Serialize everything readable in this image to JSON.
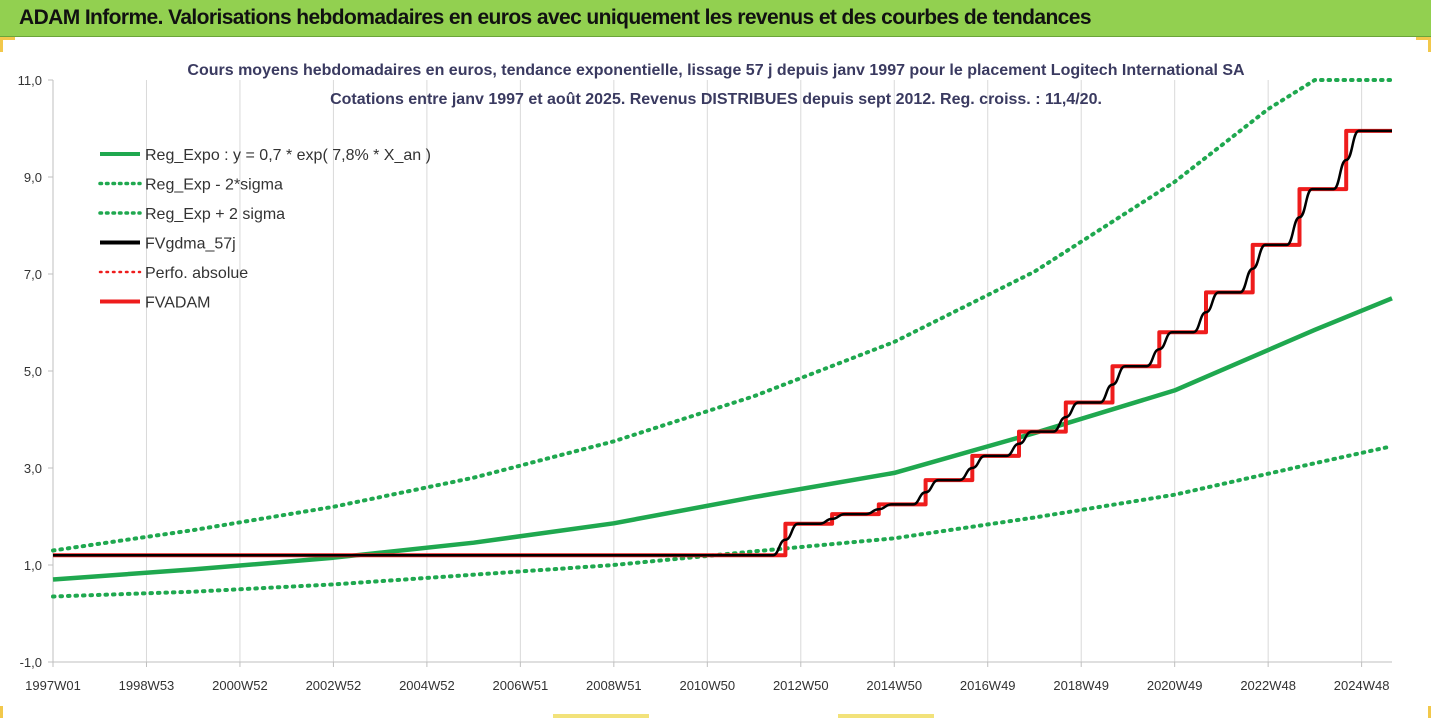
{
  "banner": {
    "title": "ADAM Informe. Valorisations hebdomadaires en euros avec uniquement les revenus et des courbes de tendances"
  },
  "colors": {
    "banner_bg": "#92d050",
    "trend_green": "#1fa84f",
    "black": "#000000",
    "red": "#ee1c1c",
    "grid": "#d9d9d9"
  },
  "chart_data": {
    "type": "line",
    "title": [
      "Cours moyens hebdomadaires en euros, tendance exponentielle, lissage 57 j depuis janv 1997  pour le placement Logitech International SA",
      "Cotations entre janv 1997 et août 2025. Revenus DISTRIBUES depuis sept 2012. Reg. croiss. : 11,4/20."
    ],
    "ylim": [
      -1,
      11
    ],
    "yticks": [
      "-1,0",
      "1,0",
      "3,0",
      "5,0",
      "7,0",
      "9,0",
      "11,0"
    ],
    "ytick_values": [
      -1,
      1,
      3,
      5,
      7,
      9,
      11
    ],
    "xlim": [
      1997.0,
      2025.65
    ],
    "xticks": [
      "1997W01",
      "1998W53",
      "2000W52",
      "2002W52",
      "2004W52",
      "2006W51",
      "2008W51",
      "2010W50",
      "2012W50",
      "2014W50",
      "2016W49",
      "2018W49",
      "2020W49",
      "2022W48",
      "2024W48"
    ],
    "xtick_values": [
      1997.0,
      1999.0,
      2001.0,
      2003.0,
      2005.0,
      2007.0,
      2009.0,
      2011.0,
      2013.0,
      2015.0,
      2017.0,
      2019.0,
      2021.0,
      2023.0,
      2025.0
    ],
    "grid": "vertical",
    "legend_position": "top-left",
    "legend": [
      {
        "label": "Reg_Expo : y = 0,7 * exp( 7,8% *  X_an )",
        "style": "solid",
        "color": "#1fa84f"
      },
      {
        "label": "Reg_Exp - 2*sigma",
        "style": "dotted",
        "color": "#1fa84f"
      },
      {
        "label": "Reg_Exp + 2 sigma",
        "style": "dotted",
        "color": "#1fa84f"
      },
      {
        "label": "FVgdma_57j",
        "style": "solid",
        "color": "#000000"
      },
      {
        "label": "Perfo. absolue",
        "style": "dotted",
        "color": "#ee1c1c"
      },
      {
        "label": "FVADAM",
        "style": "solid",
        "color": "#ee1c1c"
      }
    ],
    "series": [
      {
        "name": "Reg_Expo : y = 0,7 * exp( 7,8% *  X_an )",
        "x": [
          1997.0,
          2000.0,
          2003.0,
          2006.0,
          2009.0,
          2012.0,
          2015.0,
          2018.0,
          2021.0,
          2024.0,
          2025.65
        ],
        "y": [
          0.7,
          0.91,
          1.15,
          1.46,
          1.86,
          2.4,
          2.9,
          3.72,
          4.6,
          5.85,
          6.5
        ]
      },
      {
        "name": "Reg_Exp - 2*sigma",
        "x": [
          1997.0,
          2000.0,
          2003.0,
          2006.0,
          2009.0,
          2012.0,
          2015.0,
          2018.0,
          2021.0,
          2024.0,
          2025.65
        ],
        "y": [
          0.35,
          0.45,
          0.6,
          0.8,
          1.0,
          1.28,
          1.55,
          1.98,
          2.45,
          3.1,
          3.45
        ]
      },
      {
        "name": "Reg_Exp + 2 sigma",
        "x": [
          1997.0,
          2000.0,
          2003.0,
          2006.0,
          2009.0,
          2012.0,
          2015.0,
          2018.0,
          2021.0,
          2023.0,
          2024.0,
          2025.65
        ],
        "y": [
          1.3,
          1.72,
          2.2,
          2.8,
          3.55,
          4.48,
          5.6,
          7.05,
          8.9,
          10.4,
          11.0,
          11.0
        ]
      },
      {
        "name": "FVADAM",
        "x": [
          1997.0,
          2012.67,
          2012.67,
          2013.67,
          2013.67,
          2014.67,
          2014.67,
          2015.67,
          2015.67,
          2016.67,
          2016.67,
          2017.67,
          2017.67,
          2018.67,
          2018.67,
          2019.67,
          2019.67,
          2020.67,
          2020.67,
          2021.67,
          2021.67,
          2022.67,
          2022.67,
          2023.67,
          2023.67,
          2024.67,
          2024.67,
          2025.65
        ],
        "y": [
          1.2,
          1.2,
          1.85,
          1.85,
          2.05,
          2.05,
          2.25,
          2.25,
          2.75,
          2.75,
          3.25,
          3.25,
          3.75,
          3.75,
          4.35,
          4.35,
          5.1,
          5.1,
          5.8,
          5.8,
          6.62,
          6.62,
          7.6,
          7.6,
          8.75,
          8.75,
          9.95,
          9.95
        ]
      },
      {
        "name": "FVgdma_57j",
        "x": [
          1997.0,
          2012.4,
          2012.67,
          2012.94,
          2013.4,
          2013.67,
          2013.94,
          2014.4,
          2014.67,
          2014.94,
          2015.4,
          2015.67,
          2015.94,
          2016.4,
          2016.67,
          2016.94,
          2017.4,
          2017.67,
          2017.94,
          2018.4,
          2018.67,
          2018.94,
          2019.4,
          2019.67,
          2019.94,
          2020.4,
          2020.67,
          2020.94,
          2021.4,
          2021.67,
          2021.94,
          2022.4,
          2022.67,
          2022.94,
          2023.4,
          2023.67,
          2023.94,
          2024.4,
          2024.67,
          2024.94,
          2025.65
        ],
        "y": [
          1.2,
          1.2,
          1.52,
          1.85,
          1.85,
          1.95,
          2.05,
          2.05,
          2.15,
          2.25,
          2.25,
          2.5,
          2.75,
          2.75,
          3.0,
          3.25,
          3.25,
          3.5,
          3.75,
          3.75,
          4.05,
          4.35,
          4.35,
          4.72,
          5.1,
          5.1,
          5.45,
          5.8,
          5.8,
          6.21,
          6.62,
          6.62,
          7.11,
          7.6,
          7.6,
          8.17,
          8.75,
          8.75,
          9.35,
          9.95,
          9.95
        ]
      }
    ]
  }
}
